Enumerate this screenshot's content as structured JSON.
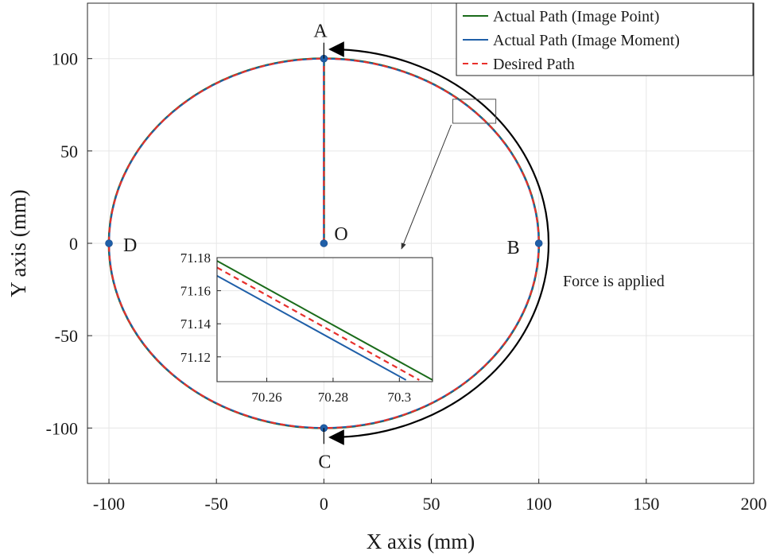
{
  "chart_data": {
    "type": "line",
    "xlabel": "X axis (mm)",
    "ylabel": "Y axis (mm)",
    "xlim": [
      -110,
      200
    ],
    "ylim": [
      -130,
      130
    ],
    "xticks": [
      -100,
      -50,
      0,
      50,
      100,
      150,
      200
    ],
    "yticks": [
      -100,
      -50,
      0,
      50,
      100
    ],
    "grid": true,
    "legend_position": "top-right",
    "series": [
      {
        "name": "Actual Path (Image Point)",
        "color": "#1a6b1a",
        "style": "solid",
        "path": {
          "segment": {
            "from": [
              0,
              0
            ],
            "to": [
              0,
              100
            ]
          },
          "circle": {
            "center": [
              0,
              0
            ],
            "radius": 100
          }
        }
      },
      {
        "name": "Actual Path (Image Moment)",
        "color": "#1f5fa8",
        "style": "solid",
        "path": {
          "segment": {
            "from": [
              0,
              0
            ],
            "to": [
              0,
              100
            ]
          },
          "circle": {
            "center": [
              0,
              0
            ],
            "radius": 100
          }
        }
      },
      {
        "name": "Desired Path",
        "color": "#e8302b",
        "style": "dashed",
        "path": {
          "segment": {
            "from": [
              0,
              0
            ],
            "to": [
              0,
              100
            ]
          },
          "circle": {
            "center": [
              0,
              0
            ],
            "radius": 100
          }
        }
      }
    ],
    "points": [
      {
        "label": "O",
        "x": 0,
        "y": 0
      },
      {
        "label": "A",
        "x": 0,
        "y": 100
      },
      {
        "label": "B",
        "x": 100,
        "y": 0
      },
      {
        "label": "C",
        "x": 0,
        "y": -100
      },
      {
        "label": "D",
        "x": -100,
        "y": 0
      }
    ],
    "annotations": [
      {
        "text": "Force is applied",
        "arc_from": "A",
        "arc_to": "C",
        "side": "right"
      }
    ],
    "zoom_box": {
      "x": [
        60,
        80
      ],
      "y": [
        65,
        78
      ]
    },
    "inset": {
      "xlim": [
        70.245,
        70.31
      ],
      "ylim": [
        71.105,
        71.18
      ],
      "xticks": [
        "70.26",
        "70.28",
        "70.3"
      ],
      "yticks": [
        "71.12",
        "71.14",
        "71.16",
        "71.18"
      ],
      "xtick_values": [
        70.26,
        70.28,
        70.3
      ],
      "ytick_values": [
        71.12,
        71.14,
        71.16,
        71.18
      ],
      "lines": [
        {
          "series": "Actual Path (Image Point)",
          "from": [
            70.245,
            71.178
          ],
          "to": [
            70.31,
            71.106
          ]
        },
        {
          "series": "Desired Path",
          "from": [
            70.245,
            71.174
          ],
          "to": [
            70.306,
            71.106
          ]
        },
        {
          "series": "Actual Path (Image Moment)",
          "from": [
            70.245,
            71.169
          ],
          "to": [
            70.302,
            71.106
          ]
        }
      ]
    }
  }
}
